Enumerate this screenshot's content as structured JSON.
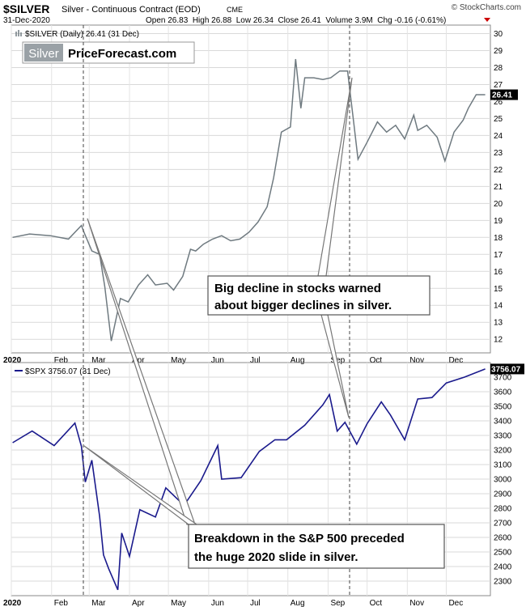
{
  "header": {
    "symbol": "$SILVER",
    "name": "Silver - Continuous Contract (EOD)",
    "exchange": "CME",
    "date": "31-Dec-2020",
    "ohlc": "Open 26.83  High 26.88  Low 26.34  Close 26.41  Volume 3.9M  Chg -0.16 (-0.61%)",
    "watermark": "© StockCharts.com"
  },
  "logo": {
    "left": "Silver",
    "right": "PriceForecast.com"
  },
  "annotations": {
    "stocks_line1": "Big decline in stocks warned",
    "stocks_line2": "about bigger declines in silver.",
    "sp_line1": "Breakdown in the S&P 500 preceded",
    "sp_line2": "the huge 2020 slide in silver."
  },
  "colors": {
    "silver": "#6f7a80",
    "spx": "#1a1a8c",
    "grid": "#d3d3d3",
    "label_bg": "#000000"
  },
  "chart_data": [
    {
      "type": "line",
      "legend": "$SILVER (Daily) 26.41 (31 Dec)",
      "last_label": "26.41",
      "ylim": [
        11.2,
        30.5
      ],
      "y_ticks": [
        12,
        13,
        14,
        15,
        16,
        17,
        18,
        19,
        20,
        21,
        22,
        23,
        24,
        25,
        26,
        27,
        28,
        29,
        30
      ],
      "x_ticks": [
        "2020",
        "Feb",
        "Mar",
        "Apr",
        "May",
        "Jun",
        "Jul",
        "Aug",
        "Sep",
        "Oct",
        "Nov",
        "Dec"
      ],
      "x": [
        "2020-01-02",
        "2020-01-15",
        "2020-01-31",
        "2020-02-14",
        "2020-02-24",
        "2020-02-26",
        "2020-03-03",
        "2020-03-09",
        "2020-03-13",
        "2020-03-18",
        "2020-03-20",
        "2020-03-25",
        "2020-03-31",
        "2020-04-08",
        "2020-04-15",
        "2020-04-21",
        "2020-04-30",
        "2020-05-05",
        "2020-05-12",
        "2020-05-18",
        "2020-05-22",
        "2020-05-28",
        "2020-06-04",
        "2020-06-11",
        "2020-06-18",
        "2020-06-25",
        "2020-07-02",
        "2020-07-09",
        "2020-07-16",
        "2020-07-21",
        "2020-07-27",
        "2020-08-03",
        "2020-08-07",
        "2020-08-11",
        "2020-08-14",
        "2020-08-21",
        "2020-08-28",
        "2020-09-03",
        "2020-09-10",
        "2020-09-16",
        "2020-09-21",
        "2020-09-24",
        "2020-10-01",
        "2020-10-09",
        "2020-10-16",
        "2020-10-23",
        "2020-10-30",
        "2020-11-06",
        "2020-11-09",
        "2020-11-16",
        "2020-11-24",
        "2020-11-30",
        "2020-12-07",
        "2020-12-14",
        "2020-12-18",
        "2020-12-24",
        "2020-12-31"
      ],
      "values": [
        18.0,
        18.2,
        18.1,
        17.9,
        18.7,
        18.3,
        17.2,
        17.0,
        15.1,
        11.9,
        12.6,
        14.4,
        14.2,
        15.2,
        15.8,
        15.2,
        15.3,
        14.9,
        15.7,
        17.3,
        17.2,
        17.6,
        17.9,
        18.1,
        17.8,
        17.9,
        18.3,
        18.9,
        19.8,
        21.5,
        24.2,
        24.5,
        28.5,
        25.6,
        27.4,
        27.4,
        27.3,
        27.4,
        27.8,
        27.8,
        24.6,
        22.6,
        23.6,
        24.8,
        24.2,
        24.6,
        23.8,
        25.2,
        24.3,
        24.6,
        23.9,
        22.5,
        24.2,
        24.9,
        25.6,
        26.4,
        26.4
      ]
    },
    {
      "type": "line",
      "legend": "$SPX 3756.07 (31 Dec)",
      "last_label": "3756.07",
      "ylim": [
        2200,
        3800
      ],
      "y_ticks": [
        2300,
        2400,
        2500,
        2600,
        2700,
        2800,
        2900,
        3000,
        3100,
        3200,
        3300,
        3400,
        3500,
        3600,
        3700
      ],
      "x_ticks": [
        "2020",
        "Feb",
        "Mar",
        "Apr",
        "May",
        "Jun",
        "Jul",
        "Aug",
        "Sep",
        "Oct",
        "Nov",
        "Dec"
      ],
      "x": [
        "2020-01-02",
        "2020-01-17",
        "2020-02-03",
        "2020-02-19",
        "2020-02-24",
        "2020-02-27",
        "2020-03-03",
        "2020-03-09",
        "2020-03-12",
        "2020-03-16",
        "2020-03-23",
        "2020-03-26",
        "2020-04-01",
        "2020-04-09",
        "2020-04-21",
        "2020-04-29",
        "2020-05-13",
        "2020-05-26",
        "2020-06-08",
        "2020-06-11",
        "2020-06-26",
        "2020-07-10",
        "2020-07-22",
        "2020-07-31",
        "2020-08-14",
        "2020-08-28",
        "2020-09-02",
        "2020-09-08",
        "2020-09-14",
        "2020-09-23",
        "2020-10-01",
        "2020-10-12",
        "2020-10-19",
        "2020-10-30",
        "2020-11-09",
        "2020-11-20",
        "2020-12-01",
        "2020-12-15",
        "2020-12-31"
      ],
      "values": [
        3250,
        3330,
        3230,
        3385,
        3225,
        2980,
        3130,
        2745,
        2480,
        2385,
        2240,
        2630,
        2470,
        2790,
        2740,
        2940,
        2820,
        2990,
        3230,
        3000,
        3010,
        3190,
        3270,
        3270,
        3370,
        3510,
        3580,
        3330,
        3390,
        3240,
        3380,
        3530,
        3440,
        3270,
        3550,
        3560,
        3660,
        3700,
        3756
      ]
    }
  ]
}
